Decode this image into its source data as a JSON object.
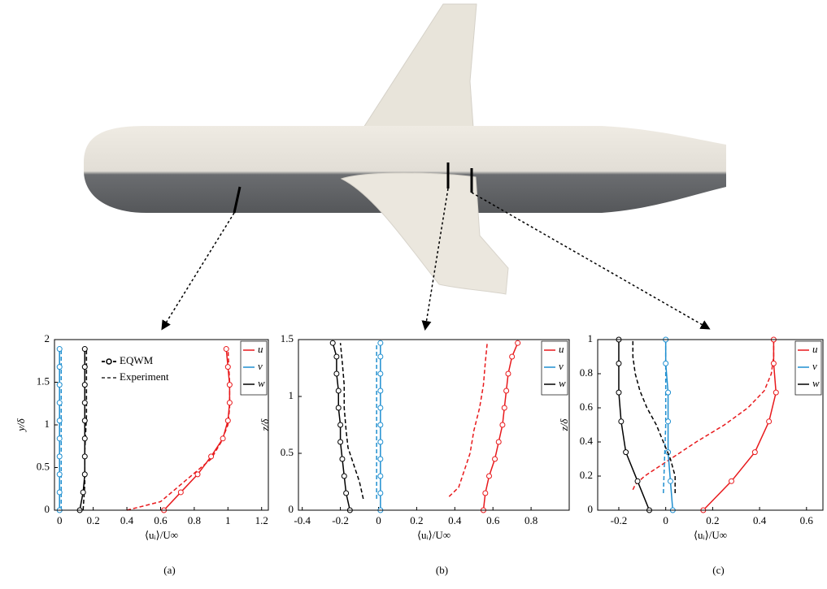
{
  "chart_data": [
    {
      "type": "profile",
      "caption": "(a)",
      "xlabel": "⟨uᵢ⟩/U∞",
      "ylabel": "y/δ",
      "xlim": [
        -0.03,
        1.24
      ],
      "xticks": [
        0,
        0.2,
        0.4,
        0.6,
        0.8,
        1,
        1.2
      ],
      "ylim": [
        0,
        2
      ],
      "yticks": [
        0,
        0.5,
        1,
        1.5,
        2
      ],
      "style_legend": [
        "EQWM",
        "Experiment"
      ],
      "series": [
        {
          "name": "u",
          "color": "#e8191c",
          "model": {
            "x": [
              0.62,
              0.72,
              0.82,
              0.9,
              0.97,
              1.0,
              1.01,
              1.01,
              1.0,
              0.99
            ],
            "y": [
              0,
              0.21,
              0.42,
              0.63,
              0.84,
              1.05,
              1.26,
              1.47,
              1.68,
              1.89
            ]
          },
          "experiment": {
            "x": [
              0.4,
              0.5,
              0.6,
              0.66,
              0.78,
              0.9,
              0.96,
              1.0,
              1.01,
              1.01,
              1.0
            ],
            "y": [
              0,
              0.05,
              0.1,
              0.2,
              0.4,
              0.6,
              0.8,
              1.0,
              1.2,
              1.5,
              1.9
            ]
          }
        },
        {
          "name": "v",
          "color": "#1f8fd0",
          "model": {
            "x": [
              0,
              0,
              0,
              0,
              0,
              0,
              0,
              0,
              0,
              0
            ],
            "y": [
              0,
              0.21,
              0.42,
              0.63,
              0.84,
              1.05,
              1.26,
              1.47,
              1.68,
              1.89
            ]
          },
          "experiment": {
            "x": [
              0.01,
              0.01
            ],
            "y": [
              0,
              1.9
            ]
          }
        },
        {
          "name": "w",
          "color": "#000000",
          "model": {
            "x": [
              0.12,
              0.14,
              0.15,
              0.15,
              0.15,
              0.15,
              0.15,
              0.15,
              0.15,
              0.15
            ],
            "y": [
              0,
              0.21,
              0.42,
              0.63,
              0.84,
              1.05,
              1.26,
              1.47,
              1.68,
              1.89
            ]
          },
          "experiment": {
            "x": [
              0.14,
              0.15,
              0.15,
              0.16,
              0.16,
              0.16
            ],
            "y": [
              0,
              0.3,
              0.7,
              1.1,
              1.5,
              1.9
            ]
          }
        }
      ]
    },
    {
      "type": "profile",
      "caption": "(b)",
      "xlabel": "⟨uᵢ⟩/U∞",
      "ylabel": "z/δ",
      "xlim": [
        -0.42,
        1.0
      ],
      "xticks": [
        -0.4,
        -0.2,
        0,
        0.2,
        0.4,
        0.6,
        0.8
      ],
      "ylim": [
        0,
        1.5
      ],
      "yticks": [
        0,
        0.5,
        1,
        1.5
      ],
      "series": [
        {
          "name": "u",
          "color": "#e8191c",
          "model": {
            "x": [
              0.55,
              0.56,
              0.58,
              0.61,
              0.63,
              0.65,
              0.66,
              0.67,
              0.68,
              0.7,
              0.73
            ],
            "y": [
              0,
              0.15,
              0.3,
              0.45,
              0.6,
              0.75,
              0.9,
              1.05,
              1.2,
              1.35,
              1.47
            ]
          },
          "experiment": {
            "x": [
              0.37,
              0.42,
              0.45,
              0.48,
              0.5,
              0.53,
              0.55,
              0.56,
              0.57
            ],
            "y": [
              0.12,
              0.2,
              0.35,
              0.5,
              0.7,
              0.9,
              1.1,
              1.3,
              1.47
            ]
          }
        },
        {
          "name": "v",
          "color": "#1f8fd0",
          "model": {
            "x": [
              0.01,
              0.01,
              0.01,
              0.01,
              0.01,
              0.01,
              0.01,
              0.01,
              0.01,
              0.01,
              0.01
            ],
            "y": [
              0,
              0.15,
              0.3,
              0.45,
              0.6,
              0.75,
              0.9,
              1.05,
              1.2,
              1.35,
              1.47
            ]
          },
          "experiment": {
            "x": [
              -0.01,
              -0.01
            ],
            "y": [
              0.1,
              1.47
            ]
          }
        },
        {
          "name": "w",
          "color": "#000000",
          "model": {
            "x": [
              -0.15,
              -0.17,
              -0.18,
              -0.19,
              -0.2,
              -0.2,
              -0.21,
              -0.21,
              -0.22,
              -0.22,
              -0.24
            ],
            "y": [
              0,
              0.15,
              0.3,
              0.45,
              0.6,
              0.75,
              0.9,
              1.05,
              1.2,
              1.35,
              1.47
            ]
          },
          "experiment": {
            "x": [
              -0.08,
              -0.1,
              -0.13,
              -0.16,
              -0.17,
              -0.18,
              -0.18,
              -0.19,
              -0.2
            ],
            "y": [
              0.1,
              0.25,
              0.4,
              0.55,
              0.7,
              0.9,
              1.1,
              1.3,
              1.47
            ]
          }
        }
      ]
    },
    {
      "type": "profile",
      "caption": "(c)",
      "xlabel": "⟨uᵢ⟩/U∞",
      "ylabel": "z/δ",
      "xlim": [
        -0.29,
        0.67
      ],
      "xticks": [
        -0.2,
        0,
        0.2,
        0.4,
        0.6
      ],
      "ylim": [
        0,
        1
      ],
      "yticks": [
        0,
        0.2,
        0.4,
        0.6,
        0.8,
        1
      ],
      "series": [
        {
          "name": "u",
          "color": "#e8191c",
          "model": {
            "x": [
              0.16,
              0.28,
              0.38,
              0.44,
              0.47,
              0.46,
              0.46
            ],
            "y": [
              0,
              0.17,
              0.34,
              0.52,
              0.69,
              0.86,
              1.0
            ]
          },
          "experiment": {
            "x": [
              -0.14,
              -0.13,
              -0.09,
              0.02,
              0.13,
              0.25,
              0.35,
              0.42,
              0.45,
              0.46,
              0.46
            ],
            "y": [
              0.12,
              0.15,
              0.2,
              0.3,
              0.4,
              0.5,
              0.6,
              0.7,
              0.8,
              0.9,
              1.0
            ]
          }
        },
        {
          "name": "v",
          "color": "#1f8fd0",
          "model": {
            "x": [
              0.03,
              0.02,
              0.01,
              0.01,
              0.01,
              0.0,
              0.0
            ],
            "y": [
              0,
              0.17,
              0.34,
              0.52,
              0.69,
              0.86,
              1.0
            ]
          },
          "experiment": {
            "x": [
              -0.01,
              0.0,
              0.0
            ],
            "y": [
              0.1,
              0.5,
              1.0
            ]
          }
        },
        {
          "name": "w",
          "color": "#000000",
          "model": {
            "x": [
              -0.07,
              -0.12,
              -0.17,
              -0.19,
              -0.2,
              -0.2,
              -0.2
            ],
            "y": [
              0,
              0.17,
              0.34,
              0.52,
              0.69,
              0.86,
              1.0
            ]
          },
          "experiment": {
            "x": [
              0.04,
              0.04,
              0.02,
              -0.01,
              -0.04,
              -0.08,
              -0.11,
              -0.13,
              -0.14,
              -0.14
            ],
            "y": [
              0.1,
              0.2,
              0.3,
              0.4,
              0.5,
              0.6,
              0.7,
              0.8,
              0.9,
              1.0
            ]
          }
        }
      ]
    }
  ]
}
